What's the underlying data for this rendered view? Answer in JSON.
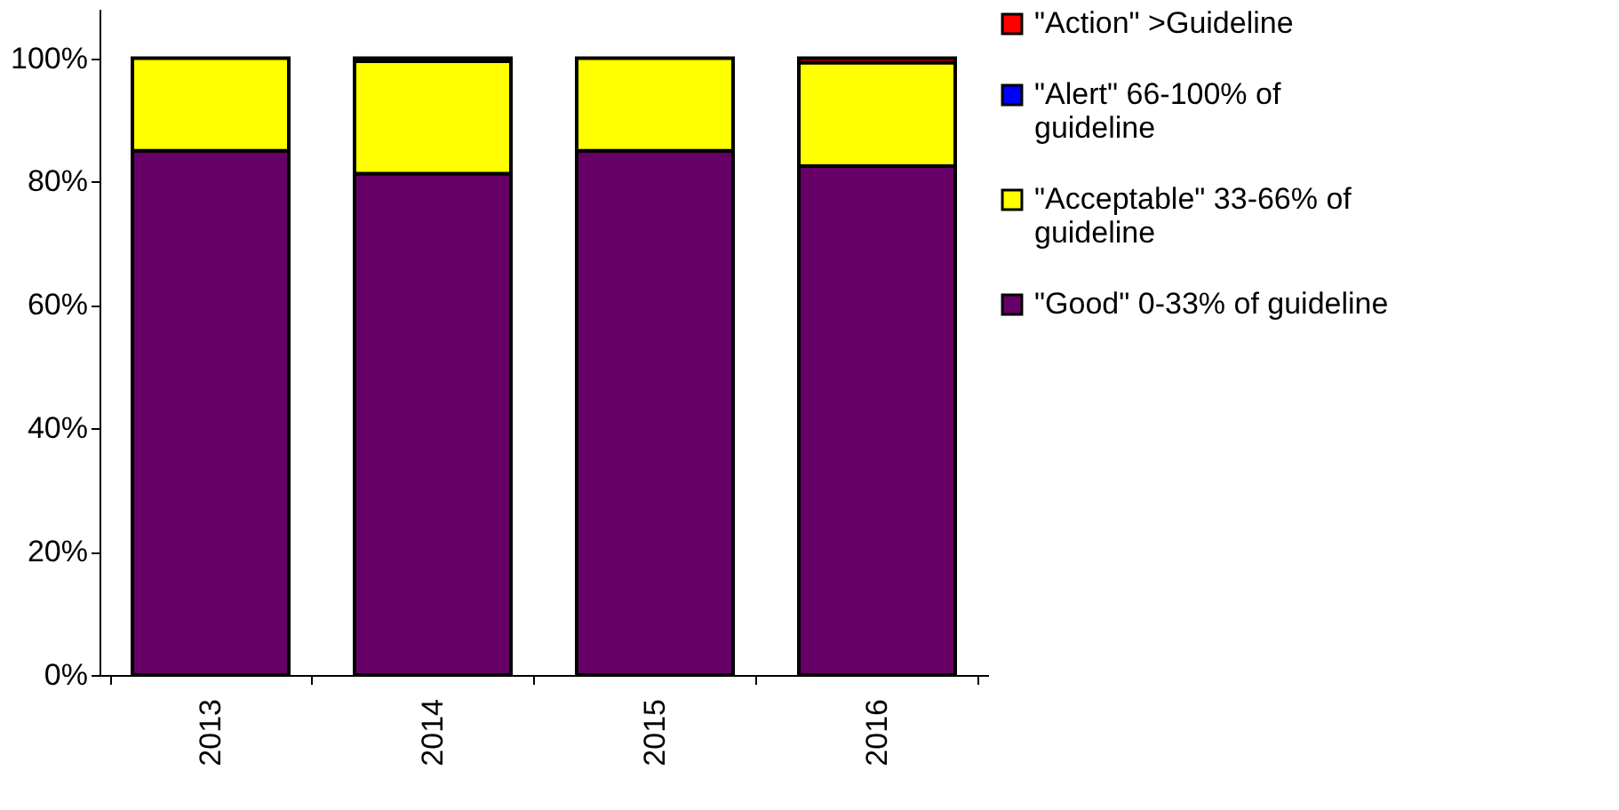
{
  "chart_data": {
    "type": "bar",
    "stacked": true,
    "categories": [
      "2013",
      "2014",
      "2015",
      "2016"
    ],
    "series": [
      {
        "name": "\"Good\" 0-33% of guideline",
        "color": "#660066",
        "values": [
          85,
          81.3,
          85,
          82.5
        ]
      },
      {
        "name": "\"Acceptable\" 33-66% of guideline",
        "color": "#ffff00",
        "values": [
          15,
          18.2,
          15,
          16.8
        ]
      },
      {
        "name": "\"Alert\" 66-100% of guideline",
        "color": "#0000ff",
        "values": [
          0,
          0,
          0,
          0
        ]
      },
      {
        "name": "\"Action\" >Guideline",
        "color": "#ff0000",
        "values": [
          0,
          0.5,
          0,
          0.7
        ]
      }
    ],
    "ylim": [
      0,
      108
    ],
    "yticks": [
      {
        "value": 0,
        "label": "0%"
      },
      {
        "value": 20,
        "label": "20%"
      },
      {
        "value": 40,
        "label": "40%"
      },
      {
        "value": 60,
        "label": "60%"
      },
      {
        "value": 80,
        "label": "80%"
      },
      {
        "value": 100,
        "label": "100%"
      }
    ],
    "grid": false,
    "legend": "right"
  }
}
